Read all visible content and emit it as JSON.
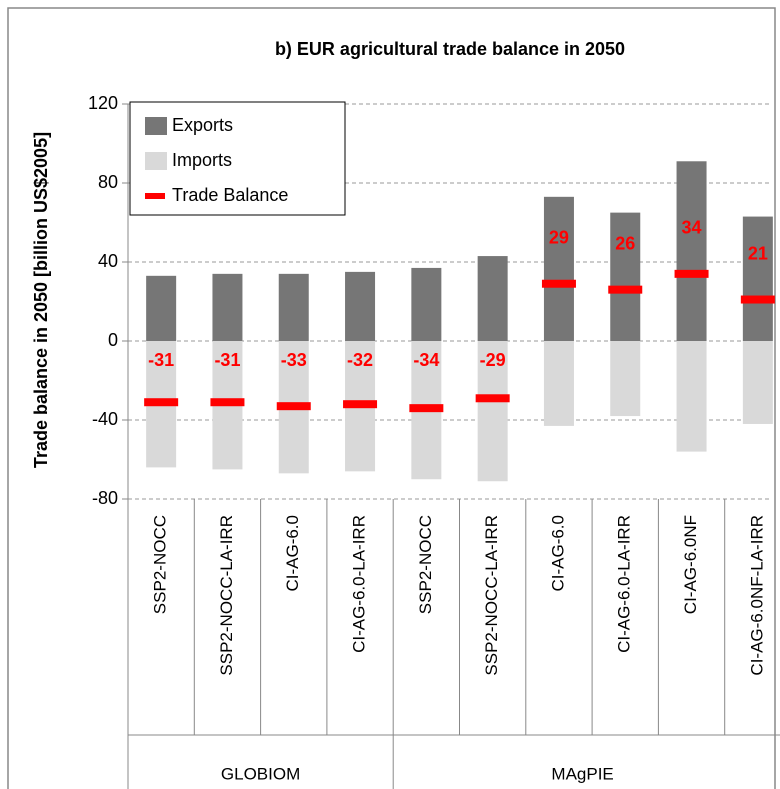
{
  "chart_data": {
    "type": "bar",
    "title": "b) EUR agricultural trade balance in 2050",
    "y_label": "Trade balance in 2050 [billion US$2005]",
    "categories": [
      "SSP2-NOCC",
      "SSP2-NOCC-LA-IRR",
      "CI-AG-6.0",
      "CI-AG-6.0-LA-IRR",
      "SSP2-NOCC",
      "SSP2-NOCC-LA-IRR",
      "CI-AG-6.0",
      "CI-AG-6.0-LA-IRR",
      "CI-AG-6.0NF",
      "CI-AG-6.0NF-LA-IRR"
    ],
    "groups": [
      {
        "label": "GLOBIOM",
        "size": 4
      },
      {
        "label": "MAgPIE",
        "size": 6
      }
    ],
    "series": [
      {
        "name": "Exports",
        "color": "#767676",
        "values": [
          33,
          34,
          34,
          35,
          37,
          43,
          73,
          65,
          91,
          63
        ]
      },
      {
        "name": "Imports",
        "color": "#d9d9d9",
        "values": [
          -64,
          -65,
          -67,
          -66,
          -70,
          -71,
          -43,
          -38,
          -56,
          -42
        ]
      },
      {
        "name": "Trade Balance",
        "color": "#ff0000",
        "values": [
          -31,
          -31,
          -33,
          -32,
          -34,
          -29,
          29,
          26,
          34,
          21
        ]
      }
    ],
    "ylim": [
      -80,
      120
    ],
    "yticks": [
      -80,
      -40,
      0,
      40,
      80,
      120
    ],
    "grid": true
  }
}
